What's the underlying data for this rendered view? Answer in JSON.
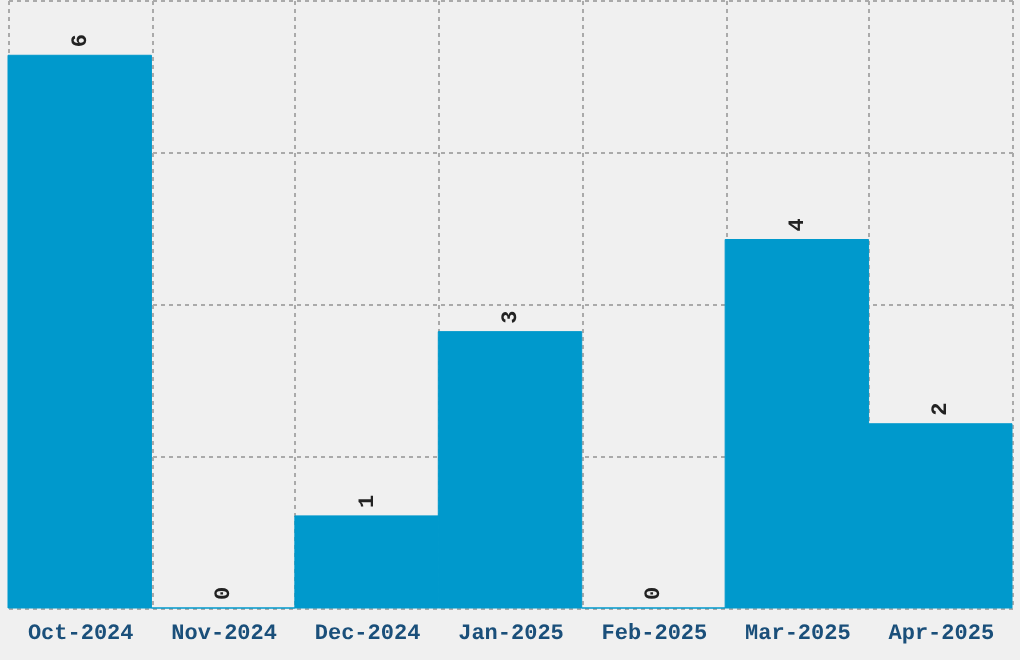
{
  "chart_data": {
    "type": "bar",
    "categories": [
      "Oct-2024",
      "Nov-2024",
      "Dec-2024",
      "Jan-2025",
      "Feb-2025",
      "Mar-2025",
      "Apr-2025"
    ],
    "values": [
      6,
      0,
      1,
      3,
      0,
      4,
      2
    ],
    "color": "#0099cc",
    "ylim": [
      0,
      6.6
    ],
    "yticks": [
      {
        "value": 0,
        "label": null
      },
      {
        "value": 1.65,
        "label": null
      },
      {
        "value": 3.3,
        "label": null
      },
      {
        "value": 4.95,
        "label": null
      },
      {
        "value": 6.6,
        "label": null
      }
    ],
    "grid": true,
    "data_labels": true,
    "tick_labels": "x"
  }
}
